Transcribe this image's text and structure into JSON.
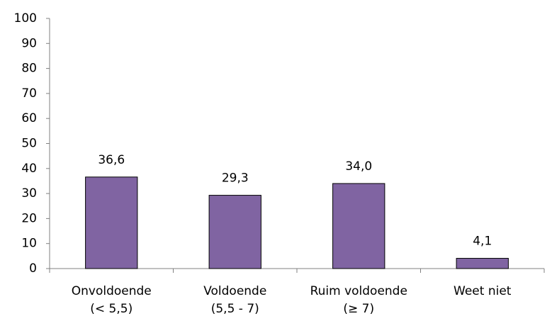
{
  "chart_data": {
    "type": "bar",
    "categories": [
      [
        "Onvoldoende",
        "(< 5,5)"
      ],
      [
        "Voldoende",
        "(5,5 - 7)"
      ],
      [
        "Ruim voldoende",
        "(≥ 7)"
      ],
      [
        "Weet niet"
      ]
    ],
    "values": [
      36.6,
      29.3,
      34.0,
      4.1
    ],
    "value_labels": [
      "36,6",
      "29,3",
      "34,0",
      "4,1"
    ],
    "color": "#8064a2",
    "ylim": [
      0,
      100
    ],
    "yticks": [
      0,
      10,
      20,
      30,
      40,
      50,
      60,
      70,
      80,
      90,
      100
    ],
    "grid": false
  }
}
